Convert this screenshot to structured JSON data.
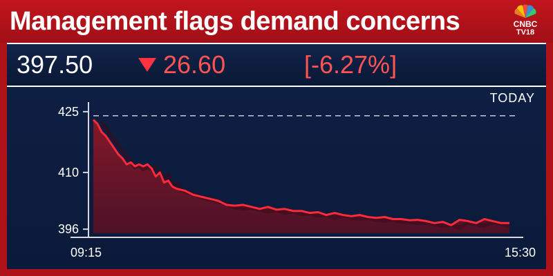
{
  "title": "Management flags demand concerns",
  "logo": {
    "line1": "CNBC",
    "line2": "TV18",
    "icon": "peacock-icon"
  },
  "quote": {
    "price": "397.50",
    "change": "26.60",
    "change_pct": "[-6.27%]",
    "direction_icon": "down-triangle-icon"
  },
  "period_label": "TODAY",
  "colors": {
    "background": "#b0121a",
    "panel": "#0d1d40",
    "line": "#ff2a3a",
    "fill": "#8a1828",
    "text": "#ffffff"
  },
  "chart_data": {
    "type": "area",
    "x_start": "09:15",
    "x_end": "15:30",
    "yticks": [
      425,
      410,
      396
    ],
    "ylim": [
      395,
      426
    ],
    "reference_line": 424,
    "x": [
      0,
      0.01,
      0.02,
      0.03,
      0.04,
      0.05,
      0.06,
      0.07,
      0.08,
      0.09,
      0.1,
      0.11,
      0.12,
      0.13,
      0.14,
      0.15,
      0.16,
      0.17,
      0.18,
      0.19,
      0.2,
      0.22,
      0.24,
      0.26,
      0.28,
      0.3,
      0.32,
      0.34,
      0.36,
      0.38,
      0.4,
      0.42,
      0.44,
      0.46,
      0.48,
      0.5,
      0.52,
      0.54,
      0.56,
      0.58,
      0.6,
      0.62,
      0.64,
      0.66,
      0.68,
      0.7,
      0.72,
      0.74,
      0.76,
      0.78,
      0.8,
      0.82,
      0.84,
      0.86,
      0.88,
      0.9,
      0.92,
      0.94,
      0.96,
      0.98,
      1.0
    ],
    "values": [
      423,
      422,
      420,
      419,
      417.5,
      416,
      414.5,
      413.5,
      412,
      412.5,
      411.5,
      412,
      411.5,
      412,
      411,
      409,
      410,
      407.5,
      408,
      406.5,
      406,
      405.5,
      404.5,
      404,
      403.5,
      403,
      402,
      401.8,
      402,
      401.5,
      401,
      401.5,
      400.8,
      401,
      400.5,
      400.5,
      400,
      400.2,
      399.5,
      400,
      399.5,
      399.2,
      399.5,
      399,
      398.8,
      399,
      398.5,
      398.5,
      398.2,
      398.3,
      398,
      397.5,
      397.8,
      397,
      398.3,
      398,
      397.5,
      398.5,
      398,
      397.5,
      397.5
    ]
  }
}
